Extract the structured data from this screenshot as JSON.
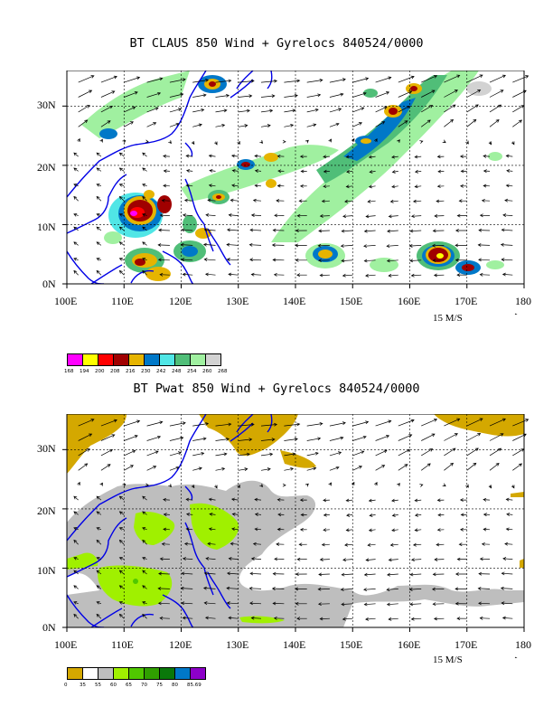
{
  "panels": [
    {
      "title": "BT CLAUS 850 Wind + Gyrelocs 840524/0000",
      "y_ticks": [
        "30N",
        "20N",
        "10N",
        "0N"
      ],
      "x_ticks": [
        "100E",
        "110E",
        "120E",
        "130E",
        "140E",
        "150E",
        "160E",
        "170E",
        "180"
      ],
      "vector_scale_label": "15 M/S",
      "colorbar": {
        "colors": [
          "#ff00ff",
          "#ffff00",
          "#ff0000",
          "#a00000",
          "#e6b400",
          "#0078c8",
          "#50e6e6",
          "#50be78",
          "#a0f0a0",
          "#d2d2d2"
        ],
        "labels": [
          "168",
          "194",
          "200",
          "208",
          "216",
          "230",
          "242",
          "248",
          "254",
          "260",
          "268"
        ]
      }
    },
    {
      "title": "BT Pwat 850 Wind + Gyrelocs 840524/0000",
      "y_ticks": [
        "30N",
        "20N",
        "10N",
        "0N"
      ],
      "x_ticks": [
        "100E",
        "110E",
        "120E",
        "130E",
        "140E",
        "150E",
        "160E",
        "170E",
        "180"
      ],
      "vector_scale_label": "15 M/S",
      "colorbar": {
        "colors": [
          "#d4a800",
          "#ffffff",
          "#bebebe",
          "#a0f000",
          "#50c800",
          "#30a000",
          "#0a780a",
          "#0078c8",
          "#8c00c8"
        ],
        "labels": [
          "0",
          "35",
          "55",
          "60",
          "65",
          "70",
          "75",
          "80",
          "85.69"
        ]
      }
    }
  ],
  "map": {
    "lon_range": [
      100,
      180
    ],
    "lat_range": [
      0,
      36
    ],
    "coastline_color": "#0000e6",
    "gridline_style": "dashed"
  }
}
